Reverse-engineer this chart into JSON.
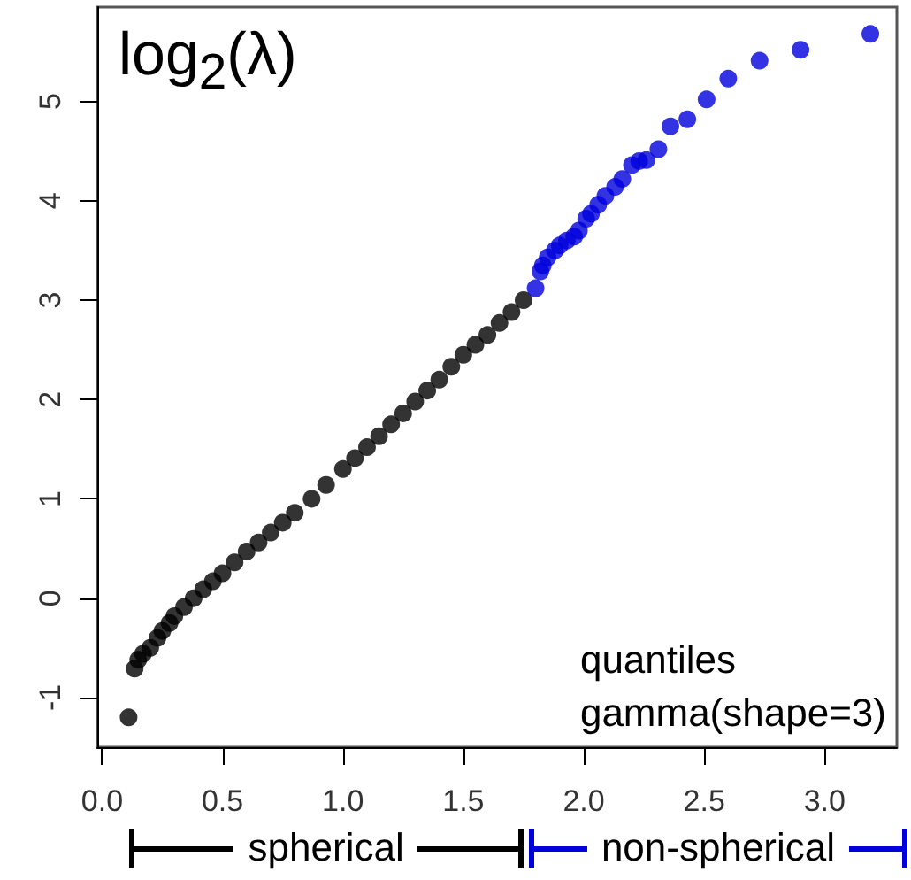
{
  "chart_data": {
    "type": "scatter",
    "ylabel": "log$_{2}$(λ)",
    "xlabel": "quantiles\ngamma(shape=3)",
    "annotations": [
      "spherical",
      "non-spherical"
    ],
    "xlim": [
      -0.02,
      3.3
    ],
    "ylim": [
      -1.5,
      5.95
    ],
    "xticks": [
      {
        "value": 0,
        "label": "0.0"
      },
      {
        "value": 0.5,
        "label": "0.5"
      },
      {
        "value": 1,
        "label": "1.0"
      },
      {
        "value": 1.5,
        "label": "1.5"
      },
      {
        "value": 2,
        "label": "2.0"
      },
      {
        "value": 2.5,
        "label": "2.5"
      },
      {
        "value": 3,
        "label": "3.0"
      }
    ],
    "yticks": [
      -1,
      0,
      1,
      2,
      3,
      4,
      5
    ],
    "grid": false,
    "marker": "circle",
    "series": [
      {
        "color": "#000000",
        "x": [
          0.11,
          0.135,
          0.15,
          0.17,
          0.2,
          0.23,
          0.25,
          0.28,
          0.3,
          0.34,
          0.38,
          0.42,
          0.46,
          0.5,
          0.55,
          0.6,
          0.65,
          0.7,
          0.75,
          0.8,
          0.87,
          0.93,
          1.0,
          1.05,
          1.1,
          1.15,
          1.2,
          1.25,
          1.3,
          1.35,
          1.4,
          1.45,
          1.5,
          1.55,
          1.6,
          1.65,
          1.7,
          1.75
        ],
        "values": [
          -1.2,
          -0.71,
          -0.62,
          -0.56,
          -0.5,
          -0.4,
          -0.33,
          -0.25,
          -0.18,
          -0.09,
          0,
          0.09,
          0.17,
          0.25,
          0.36,
          0.47,
          0.56,
          0.66,
          0.76,
          0.86,
          1.0,
          1.14,
          1.3,
          1.41,
          1.52,
          1.63,
          1.75,
          1.86,
          1.98,
          2.09,
          2.2,
          2.33,
          2.45,
          2.55,
          2.65,
          2.77,
          2.88,
          3.0
        ]
      },
      {
        "color": "#0000dd",
        "x": [
          1.8,
          1.82,
          1.83,
          1.85,
          1.88,
          1.9,
          1.93,
          1.96,
          1.98,
          2.01,
          2.03,
          2.06,
          2.09,
          2.13,
          2.16,
          2.2,
          2.23,
          2.26,
          2.31,
          2.36,
          2.43,
          2.51,
          2.6,
          2.73,
          2.9,
          3.19
        ],
        "values": [
          3.12,
          3.29,
          3.35,
          3.43,
          3.5,
          3.55,
          3.6,
          3.64,
          3.7,
          3.82,
          3.87,
          3.96,
          4.05,
          4.14,
          4.22,
          4.36,
          4.4,
          4.41,
          4.52,
          4.75,
          4.82,
          5.02,
          5.23,
          5.41,
          5.52,
          5.68
        ]
      }
    ]
  }
}
